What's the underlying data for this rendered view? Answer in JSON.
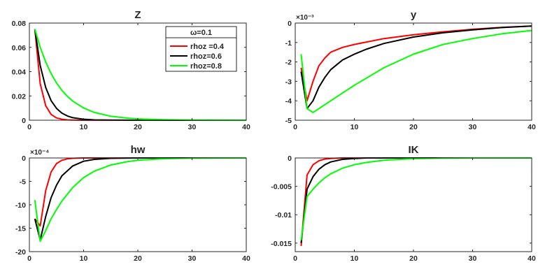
{
  "legend": {
    "title": "ω=0.1",
    "entries": [
      {
        "label": "rhoz =0.4",
        "color": "#ff0000"
      },
      {
        "label": "rhoz=0.6",
        "color": "#000000"
      },
      {
        "label": "rhoz=0.8",
        "color": "#00ff00"
      }
    ]
  },
  "chart_data": [
    {
      "type": "line",
      "title": "Z",
      "xlabel": "",
      "ylabel": "",
      "xlim": [
        0,
        40
      ],
      "ylim": [
        0,
        0.08
      ],
      "xticks": [
        0,
        10,
        20,
        30,
        40
      ],
      "yticks": [
        0,
        0.02,
        0.04,
        0.06,
        0.08
      ],
      "ytick_labels": [
        "0",
        "0.02",
        "0.04",
        "0.06",
        "0.08"
      ],
      "exponent_label": "",
      "legend_position": "top-right",
      "series": [
        {
          "name": "rhoz =0.4",
          "color": "#ff0000",
          "x": [
            1,
            2,
            3,
            4,
            5,
            6,
            7,
            8,
            10,
            12,
            15,
            20,
            40
          ],
          "y": [
            0.075,
            0.03,
            0.012,
            0.0048,
            0.0019,
            0.0008,
            0.0003,
            0.0001,
            0,
            0,
            0,
            0,
            0
          ]
        },
        {
          "name": "rhoz=0.6",
          "color": "#000000",
          "x": [
            1,
            2,
            3,
            4,
            5,
            6,
            7,
            8,
            10,
            12,
            15,
            20,
            40
          ],
          "y": [
            0.075,
            0.045,
            0.027,
            0.0162,
            0.0097,
            0.0058,
            0.0035,
            0.0021,
            0.0008,
            0.0003,
            0.0001,
            0,
            0
          ]
        },
        {
          "name": "rhoz=0.8",
          "color": "#00ff00",
          "x": [
            1,
            2,
            3,
            4,
            5,
            6,
            7,
            8,
            10,
            12,
            15,
            18,
            20,
            25,
            30,
            40
          ],
          "y": [
            0.075,
            0.06,
            0.048,
            0.0384,
            0.0307,
            0.0246,
            0.0197,
            0.0157,
            0.0101,
            0.0064,
            0.0033,
            0.0017,
            0.0011,
            0.0004,
            0.0001,
            0
          ]
        }
      ]
    },
    {
      "type": "line",
      "title": "y",
      "xlabel": "",
      "ylabel": "",
      "xlim": [
        0,
        40
      ],
      "ylim": [
        -5,
        0
      ],
      "xticks": [
        0,
        10,
        20,
        30,
        40
      ],
      "yticks": [
        -5,
        -4,
        -3,
        -2,
        -1,
        0
      ],
      "ytick_labels": [
        "-5",
        "-4",
        "-3",
        "-2",
        "-1",
        "0"
      ],
      "exponent_label": "×10⁻³",
      "series": [
        {
          "name": "rhoz =0.4",
          "color": "#ff0000",
          "x": [
            1,
            2,
            3,
            4,
            5,
            6,
            8,
            10,
            15,
            20,
            25,
            30,
            35,
            40
          ],
          "y": [
            -2.3,
            -4.0,
            -3.0,
            -2.2,
            -1.8,
            -1.5,
            -1.25,
            -1.1,
            -0.8,
            -0.6,
            -0.45,
            -0.32,
            -0.22,
            -0.15
          ]
        },
        {
          "name": "rhoz=0.6",
          "color": "#000000",
          "x": [
            1,
            2,
            3,
            4,
            5,
            6,
            8,
            10,
            12,
            15,
            20,
            25,
            30,
            35,
            40
          ],
          "y": [
            -2.5,
            -4.4,
            -4.0,
            -3.3,
            -2.8,
            -2.4,
            -1.9,
            -1.6,
            -1.35,
            -1.05,
            -0.72,
            -0.5,
            -0.35,
            -0.23,
            -0.15
          ]
        },
        {
          "name": "rhoz=0.8",
          "color": "#00ff00",
          "x": [
            1,
            2,
            3,
            5,
            8,
            10,
            15,
            20,
            25,
            30,
            35,
            40
          ],
          "y": [
            -1.6,
            -4.4,
            -4.6,
            -4.2,
            -3.6,
            -3.2,
            -2.3,
            -1.6,
            -1.1,
            -0.8,
            -0.55,
            -0.38
          ]
        }
      ]
    },
    {
      "type": "line",
      "title": "hw",
      "xlabel": "",
      "ylabel": "",
      "xlim": [
        0,
        40
      ],
      "ylim": [
        -20,
        0
      ],
      "xticks": [
        0,
        10,
        20,
        30,
        40
      ],
      "yticks": [
        -20,
        -15,
        -10,
        -5,
        0
      ],
      "ytick_labels": [
        "-20",
        "-15",
        "-10",
        "-5",
        "0"
      ],
      "exponent_label": "×10⁻⁴",
      "series": [
        {
          "name": "rhoz =0.4",
          "color": "#ff0000",
          "x": [
            1,
            2,
            3,
            4,
            5,
            6,
            7,
            8,
            10,
            12,
            40
          ],
          "y": [
            -13,
            -14.5,
            -7,
            -3,
            -1.2,
            -0.5,
            -0.2,
            -0.08,
            0,
            0,
            0
          ]
        },
        {
          "name": "rhoz=0.6",
          "color": "#000000",
          "x": [
            1,
            2,
            3,
            4,
            5,
            6,
            8,
            10,
            12,
            15,
            20,
            40
          ],
          "y": [
            -13,
            -17.5,
            -12.5,
            -8.5,
            -5.8,
            -3.8,
            -1.7,
            -0.7,
            -0.3,
            -0.08,
            0,
            0
          ]
        },
        {
          "name": "rhoz=0.8",
          "color": "#00ff00",
          "x": [
            1,
            2,
            3,
            4,
            5,
            6,
            8,
            10,
            12,
            15,
            18,
            20,
            25,
            30,
            40
          ],
          "y": [
            -9,
            -17.8,
            -15.5,
            -13,
            -11,
            -9.2,
            -6.3,
            -4.2,
            -2.8,
            -1.5,
            -0.8,
            -0.5,
            -0.15,
            -0.03,
            0
          ]
        }
      ]
    },
    {
      "type": "line",
      "title": "IK",
      "xlabel": "",
      "ylabel": "",
      "xlim": [
        0,
        40
      ],
      "ylim": [
        -0.0165,
        0
      ],
      "xticks": [
        0,
        10,
        20,
        30,
        40
      ],
      "yticks": [
        -0.015,
        -0.01,
        -0.005,
        0
      ],
      "ytick_labels": [
        "-0.015",
        "-0.01",
        "-0.005",
        "0"
      ],
      "exponent_label": "",
      "series": [
        {
          "name": "rhoz =0.4",
          "color": "#ff0000",
          "x": [
            1,
            2,
            3,
            4,
            5,
            6,
            8,
            10,
            40
          ],
          "y": [
            -0.0155,
            -0.003,
            -0.0012,
            -0.0005,
            -0.0002,
            -0.0001,
            0,
            0,
            0
          ]
        },
        {
          "name": "rhoz=0.6",
          "color": "#000000",
          "x": [
            1,
            2,
            3,
            4,
            5,
            6,
            8,
            10,
            12,
            15,
            20,
            40
          ],
          "y": [
            -0.015,
            -0.0055,
            -0.0033,
            -0.002,
            -0.0012,
            -0.0007,
            -0.00025,
            -0.0001,
            0,
            0,
            0,
            0
          ]
        },
        {
          "name": "rhoz=0.8",
          "color": "#00ff00",
          "x": [
            1,
            2,
            3,
            4,
            5,
            6,
            8,
            10,
            12,
            15,
            20,
            25,
            30,
            40
          ],
          "y": [
            -0.0145,
            -0.0068,
            -0.0055,
            -0.0044,
            -0.0035,
            -0.0028,
            -0.0018,
            -0.0012,
            -0.0008,
            -0.0004,
            -0.00012,
            -4e-05,
            0,
            0
          ]
        }
      ]
    }
  ]
}
